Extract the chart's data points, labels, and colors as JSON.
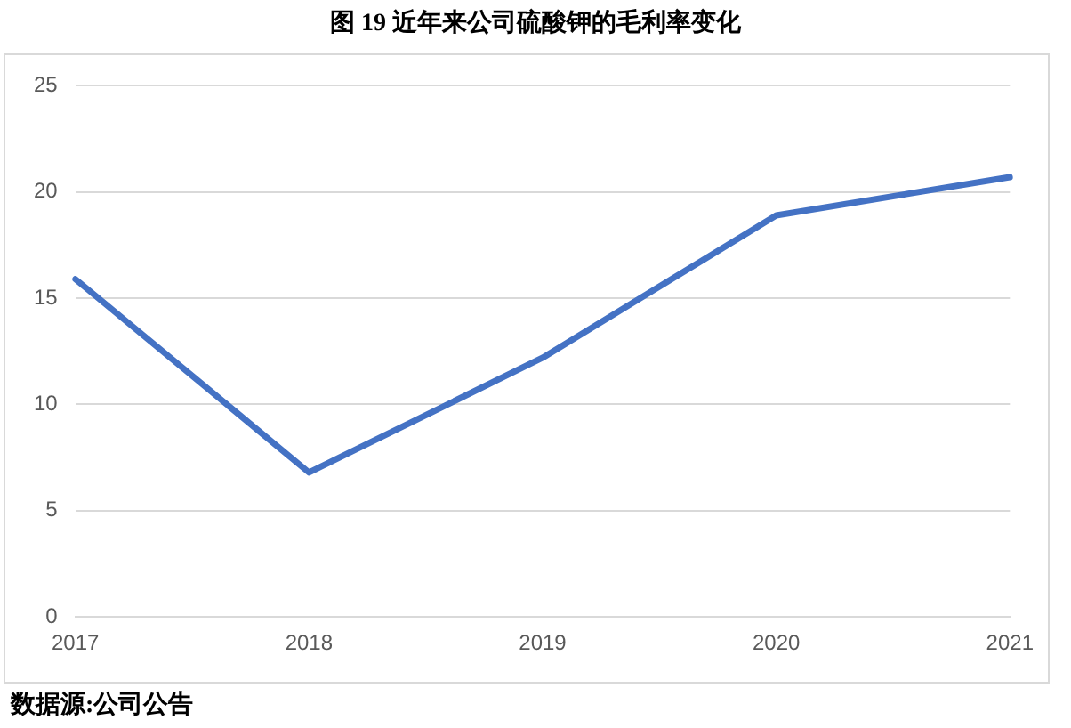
{
  "chart_data": {
    "type": "line",
    "title": "图 19 近年来公司硫酸钾的毛利率变化",
    "categories": [
      "2017",
      "2018",
      "2019",
      "2020",
      "2021"
    ],
    "series": [
      {
        "color": "#4472c4",
        "values": [
          15.9,
          6.8,
          12.2,
          18.9,
          20.7
        ]
      }
    ],
    "ylim": [
      0,
      25
    ],
    "yticks": [
      0,
      5,
      10,
      15,
      20,
      25
    ],
    "grid": "y",
    "legend": false,
    "marker": "none",
    "line_style": "solid",
    "annotations": [
      "数据源:公司公告"
    ]
  }
}
